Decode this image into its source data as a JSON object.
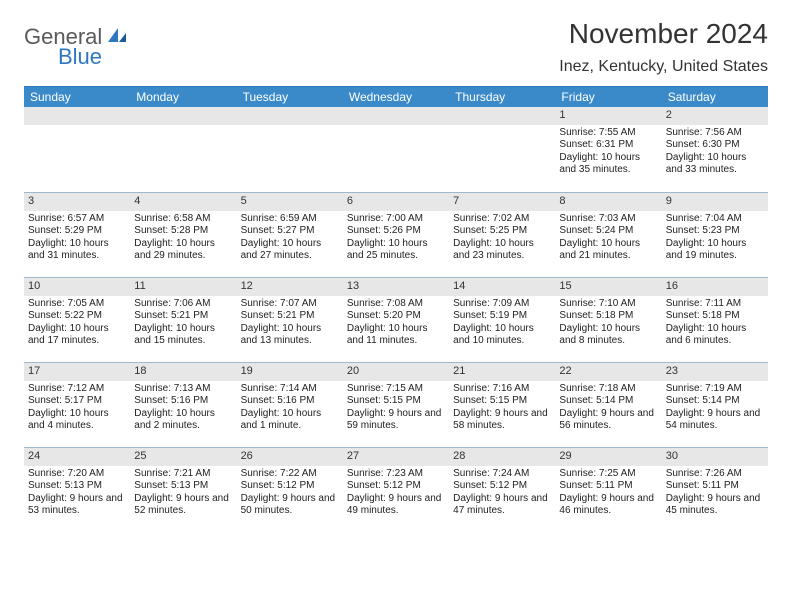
{
  "logo": {
    "word1": "General",
    "word2": "Blue"
  },
  "title": "November 2024",
  "location": "Inez, Kentucky, United States",
  "dow_header_bg": "#3a8ac9",
  "accent_border": "#2e78c2",
  "daynum_bg": "#e7e7e7",
  "cell_border": "#9db8cf",
  "daysOfWeek": [
    "Sunday",
    "Monday",
    "Tuesday",
    "Wednesday",
    "Thursday",
    "Friday",
    "Saturday"
  ],
  "weeks": [
    [
      {
        "n": "",
        "sunrise": "",
        "sunset": "",
        "daylight": ""
      },
      {
        "n": "",
        "sunrise": "",
        "sunset": "",
        "daylight": ""
      },
      {
        "n": "",
        "sunrise": "",
        "sunset": "",
        "daylight": ""
      },
      {
        "n": "",
        "sunrise": "",
        "sunset": "",
        "daylight": ""
      },
      {
        "n": "",
        "sunrise": "",
        "sunset": "",
        "daylight": ""
      },
      {
        "n": "1",
        "sunrise": "Sunrise: 7:55 AM",
        "sunset": "Sunset: 6:31 PM",
        "daylight": "Daylight: 10 hours and 35 minutes."
      },
      {
        "n": "2",
        "sunrise": "Sunrise: 7:56 AM",
        "sunset": "Sunset: 6:30 PM",
        "daylight": "Daylight: 10 hours and 33 minutes."
      }
    ],
    [
      {
        "n": "3",
        "sunrise": "Sunrise: 6:57 AM",
        "sunset": "Sunset: 5:29 PM",
        "daylight": "Daylight: 10 hours and 31 minutes."
      },
      {
        "n": "4",
        "sunrise": "Sunrise: 6:58 AM",
        "sunset": "Sunset: 5:28 PM",
        "daylight": "Daylight: 10 hours and 29 minutes."
      },
      {
        "n": "5",
        "sunrise": "Sunrise: 6:59 AM",
        "sunset": "Sunset: 5:27 PM",
        "daylight": "Daylight: 10 hours and 27 minutes."
      },
      {
        "n": "6",
        "sunrise": "Sunrise: 7:00 AM",
        "sunset": "Sunset: 5:26 PM",
        "daylight": "Daylight: 10 hours and 25 minutes."
      },
      {
        "n": "7",
        "sunrise": "Sunrise: 7:02 AM",
        "sunset": "Sunset: 5:25 PM",
        "daylight": "Daylight: 10 hours and 23 minutes."
      },
      {
        "n": "8",
        "sunrise": "Sunrise: 7:03 AM",
        "sunset": "Sunset: 5:24 PM",
        "daylight": "Daylight: 10 hours and 21 minutes."
      },
      {
        "n": "9",
        "sunrise": "Sunrise: 7:04 AM",
        "sunset": "Sunset: 5:23 PM",
        "daylight": "Daylight: 10 hours and 19 minutes."
      }
    ],
    [
      {
        "n": "10",
        "sunrise": "Sunrise: 7:05 AM",
        "sunset": "Sunset: 5:22 PM",
        "daylight": "Daylight: 10 hours and 17 minutes."
      },
      {
        "n": "11",
        "sunrise": "Sunrise: 7:06 AM",
        "sunset": "Sunset: 5:21 PM",
        "daylight": "Daylight: 10 hours and 15 minutes."
      },
      {
        "n": "12",
        "sunrise": "Sunrise: 7:07 AM",
        "sunset": "Sunset: 5:21 PM",
        "daylight": "Daylight: 10 hours and 13 minutes."
      },
      {
        "n": "13",
        "sunrise": "Sunrise: 7:08 AM",
        "sunset": "Sunset: 5:20 PM",
        "daylight": "Daylight: 10 hours and 11 minutes."
      },
      {
        "n": "14",
        "sunrise": "Sunrise: 7:09 AM",
        "sunset": "Sunset: 5:19 PM",
        "daylight": "Daylight: 10 hours and 10 minutes."
      },
      {
        "n": "15",
        "sunrise": "Sunrise: 7:10 AM",
        "sunset": "Sunset: 5:18 PM",
        "daylight": "Daylight: 10 hours and 8 minutes."
      },
      {
        "n": "16",
        "sunrise": "Sunrise: 7:11 AM",
        "sunset": "Sunset: 5:18 PM",
        "daylight": "Daylight: 10 hours and 6 minutes."
      }
    ],
    [
      {
        "n": "17",
        "sunrise": "Sunrise: 7:12 AM",
        "sunset": "Sunset: 5:17 PM",
        "daylight": "Daylight: 10 hours and 4 minutes."
      },
      {
        "n": "18",
        "sunrise": "Sunrise: 7:13 AM",
        "sunset": "Sunset: 5:16 PM",
        "daylight": "Daylight: 10 hours and 2 minutes."
      },
      {
        "n": "19",
        "sunrise": "Sunrise: 7:14 AM",
        "sunset": "Sunset: 5:16 PM",
        "daylight": "Daylight: 10 hours and 1 minute."
      },
      {
        "n": "20",
        "sunrise": "Sunrise: 7:15 AM",
        "sunset": "Sunset: 5:15 PM",
        "daylight": "Daylight: 9 hours and 59 minutes."
      },
      {
        "n": "21",
        "sunrise": "Sunrise: 7:16 AM",
        "sunset": "Sunset: 5:15 PM",
        "daylight": "Daylight: 9 hours and 58 minutes."
      },
      {
        "n": "22",
        "sunrise": "Sunrise: 7:18 AM",
        "sunset": "Sunset: 5:14 PM",
        "daylight": "Daylight: 9 hours and 56 minutes."
      },
      {
        "n": "23",
        "sunrise": "Sunrise: 7:19 AM",
        "sunset": "Sunset: 5:14 PM",
        "daylight": "Daylight: 9 hours and 54 minutes."
      }
    ],
    [
      {
        "n": "24",
        "sunrise": "Sunrise: 7:20 AM",
        "sunset": "Sunset: 5:13 PM",
        "daylight": "Daylight: 9 hours and 53 minutes."
      },
      {
        "n": "25",
        "sunrise": "Sunrise: 7:21 AM",
        "sunset": "Sunset: 5:13 PM",
        "daylight": "Daylight: 9 hours and 52 minutes."
      },
      {
        "n": "26",
        "sunrise": "Sunrise: 7:22 AM",
        "sunset": "Sunset: 5:12 PM",
        "daylight": "Daylight: 9 hours and 50 minutes."
      },
      {
        "n": "27",
        "sunrise": "Sunrise: 7:23 AM",
        "sunset": "Sunset: 5:12 PM",
        "daylight": "Daylight: 9 hours and 49 minutes."
      },
      {
        "n": "28",
        "sunrise": "Sunrise: 7:24 AM",
        "sunset": "Sunset: 5:12 PM",
        "daylight": "Daylight: 9 hours and 47 minutes."
      },
      {
        "n": "29",
        "sunrise": "Sunrise: 7:25 AM",
        "sunset": "Sunset: 5:11 PM",
        "daylight": "Daylight: 9 hours and 46 minutes."
      },
      {
        "n": "30",
        "sunrise": "Sunrise: 7:26 AM",
        "sunset": "Sunset: 5:11 PM",
        "daylight": "Daylight: 9 hours and 45 minutes."
      }
    ]
  ]
}
